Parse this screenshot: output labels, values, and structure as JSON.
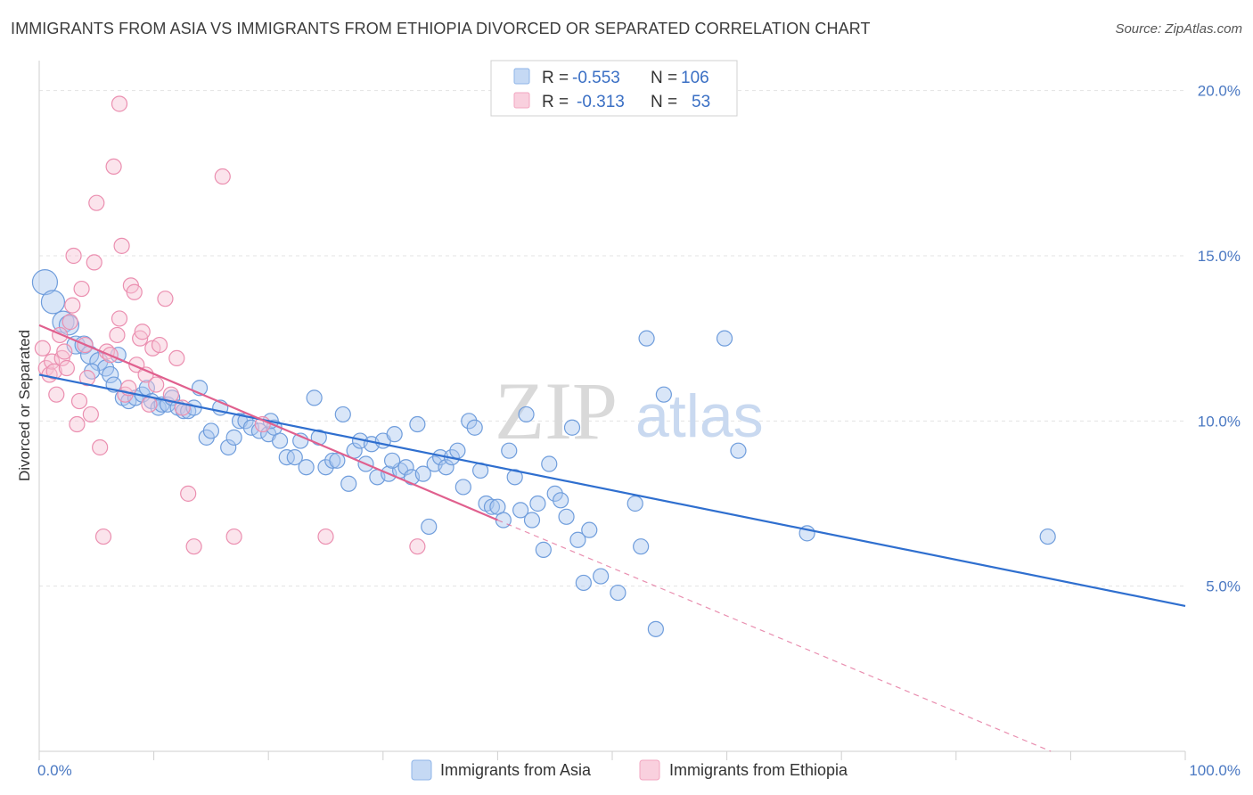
{
  "header": {
    "title": "IMMIGRANTS FROM ASIA VS IMMIGRANTS FROM ETHIOPIA DIVORCED OR SEPARATED CORRELATION CHART",
    "source": "Source: ZipAtlas.com"
  },
  "watermark": {
    "part1": "ZIP",
    "part2": "atlas"
  },
  "legend": {
    "r_label": "R =",
    "n_label": "N =",
    "rows": [
      {
        "r": "-0.553",
        "n": "106",
        "color": "#8fb5e8"
      },
      {
        "r": "-0.313",
        "n": "53",
        "color": "#f2a6c0"
      }
    ]
  },
  "chart_data": {
    "type": "scatter",
    "title": "IMMIGRANTS FROM ASIA VS IMMIGRANTS FROM ETHIOPIA DIVORCED OR SEPARATED CORRELATION CHART",
    "xlabel": "",
    "ylabel": "Divorced or Separated",
    "xlim": [
      0,
      100
    ],
    "ylim": [
      0,
      20.8
    ],
    "x_tick_labels": [
      "0.0%",
      "100.0%"
    ],
    "y_ticks": [
      5,
      10,
      15,
      20
    ],
    "y_tick_labels": [
      "5.0%",
      "10.0%",
      "15.0%",
      "20.0%"
    ],
    "grid": true,
    "legend_position": "top-center",
    "series": [
      {
        "name": "Immigrants from Asia",
        "color": "#8fb5e8",
        "line_color": "#2f6fcf",
        "trend": {
          "x": [
            0,
            100
          ],
          "y": [
            11.4,
            4.4
          ]
        },
        "points": [
          [
            0.5,
            14.2
          ],
          [
            1.2,
            13.6
          ],
          [
            2.1,
            13.0
          ],
          [
            2.6,
            12.9
          ],
          [
            3.2,
            12.3
          ],
          [
            3.9,
            12.3
          ],
          [
            4.4,
            12.0
          ],
          [
            5.2,
            11.8
          ],
          [
            5.8,
            11.6
          ],
          [
            6.2,
            11.4
          ],
          [
            6.5,
            11.1
          ],
          [
            7.3,
            10.7
          ],
          [
            7.8,
            10.6
          ],
          [
            8.4,
            10.7
          ],
          [
            9.0,
            10.8
          ],
          [
            9.4,
            11.0
          ],
          [
            9.8,
            10.6
          ],
          [
            10.4,
            10.4
          ],
          [
            10.7,
            10.5
          ],
          [
            11.2,
            10.5
          ],
          [
            11.6,
            10.7
          ],
          [
            12.1,
            10.4
          ],
          [
            12.6,
            10.3
          ],
          [
            13.0,
            10.3
          ],
          [
            13.5,
            10.4
          ],
          [
            14.0,
            11.0
          ],
          [
            14.6,
            9.5
          ],
          [
            15.0,
            9.7
          ],
          [
            15.8,
            10.4
          ],
          [
            16.5,
            9.2
          ],
          [
            17.0,
            9.5
          ],
          [
            17.5,
            10.0
          ],
          [
            18.0,
            10.0
          ],
          [
            18.5,
            9.8
          ],
          [
            19.2,
            9.7
          ],
          [
            20.0,
            9.6
          ],
          [
            20.5,
            9.8
          ],
          [
            21.0,
            9.4
          ],
          [
            21.6,
            8.9
          ],
          [
            22.3,
            8.9
          ],
          [
            22.8,
            9.4
          ],
          [
            23.3,
            8.6
          ],
          [
            24.0,
            10.7
          ],
          [
            24.4,
            9.5
          ],
          [
            25.0,
            8.6
          ],
          [
            25.6,
            8.8
          ],
          [
            26.0,
            8.8
          ],
          [
            26.5,
            10.2
          ],
          [
            27.0,
            8.1
          ],
          [
            27.5,
            9.1
          ],
          [
            28.0,
            9.4
          ],
          [
            28.5,
            8.7
          ],
          [
            29.0,
            9.3
          ],
          [
            29.5,
            8.3
          ],
          [
            30.0,
            9.4
          ],
          [
            30.5,
            8.4
          ],
          [
            31.0,
            9.6
          ],
          [
            31.5,
            8.5
          ],
          [
            32.0,
            8.6
          ],
          [
            32.5,
            8.3
          ],
          [
            33.0,
            9.9
          ],
          [
            33.5,
            8.4
          ],
          [
            34.0,
            6.8
          ],
          [
            34.5,
            8.7
          ],
          [
            35.0,
            8.9
          ],
          [
            35.5,
            8.6
          ],
          [
            36.0,
            8.9
          ],
          [
            36.5,
            9.1
          ],
          [
            37.0,
            8.0
          ],
          [
            37.5,
            10.0
          ],
          [
            38.0,
            9.8
          ],
          [
            38.5,
            8.5
          ],
          [
            39.0,
            7.5
          ],
          [
            39.5,
            7.4
          ],
          [
            40.0,
            7.4
          ],
          [
            40.5,
            7.0
          ],
          [
            41.0,
            9.1
          ],
          [
            41.5,
            8.3
          ],
          [
            42.0,
            7.3
          ],
          [
            42.5,
            10.2
          ],
          [
            43.0,
            7.0
          ],
          [
            43.5,
            7.5
          ],
          [
            44.0,
            6.1
          ],
          [
            44.5,
            8.7
          ],
          [
            45.0,
            7.8
          ],
          [
            45.5,
            7.6
          ],
          [
            46.0,
            7.1
          ],
          [
            46.5,
            9.8
          ],
          [
            47.0,
            6.4
          ],
          [
            47.5,
            5.1
          ],
          [
            48.0,
            6.7
          ],
          [
            49.0,
            5.3
          ],
          [
            50.5,
            4.8
          ],
          [
            52.0,
            7.5
          ],
          [
            52.5,
            6.2
          ],
          [
            53.0,
            12.5
          ],
          [
            53.8,
            3.7
          ],
          [
            54.5,
            10.8
          ],
          [
            59.8,
            12.5
          ],
          [
            61.0,
            9.1
          ],
          [
            67.0,
            6.6
          ],
          [
            88.0,
            6.5
          ],
          [
            4.6,
            11.5
          ],
          [
            6.9,
            12.0
          ],
          [
            20.2,
            10.0
          ],
          [
            30.8,
            8.8
          ]
        ],
        "sizes": [
          14,
          13,
          12,
          11,
          10,
          10,
          10,
          10,
          9,
          9
        ]
      },
      {
        "name": "Immigrants from Ethiopia",
        "color": "#f2a6c0",
        "line_color": "#e0608e",
        "trend": {
          "x": [
            0,
            40
          ],
          "y": [
            12.9,
            7.0
          ]
        },
        "trend_extension": {
          "x": [
            40,
            100
          ],
          "y": [
            7.0,
            -1.7
          ]
        },
        "points": [
          [
            0.3,
            12.2
          ],
          [
            0.6,
            11.6
          ],
          [
            0.9,
            11.4
          ],
          [
            1.1,
            11.8
          ],
          [
            1.3,
            11.5
          ],
          [
            1.5,
            10.8
          ],
          [
            1.8,
            12.6
          ],
          [
            2.0,
            11.9
          ],
          [
            2.2,
            12.1
          ],
          [
            2.4,
            11.6
          ],
          [
            2.7,
            13.0
          ],
          [
            2.9,
            13.5
          ],
          [
            3.0,
            15.0
          ],
          [
            3.3,
            9.9
          ],
          [
            3.5,
            10.6
          ],
          [
            3.7,
            14.0
          ],
          [
            4.0,
            12.3
          ],
          [
            4.2,
            11.3
          ],
          [
            4.5,
            10.2
          ],
          [
            4.8,
            14.8
          ],
          [
            5.0,
            16.6
          ],
          [
            5.3,
            9.2
          ],
          [
            5.6,
            6.5
          ],
          [
            5.9,
            12.1
          ],
          [
            6.2,
            12.0
          ],
          [
            6.5,
            17.7
          ],
          [
            6.8,
            12.6
          ],
          [
            7.0,
            13.1
          ],
          [
            7.2,
            15.3
          ],
          [
            7.5,
            10.8
          ],
          [
            7.8,
            11.0
          ],
          [
            8.0,
            14.1
          ],
          [
            8.3,
            13.9
          ],
          [
            8.5,
            11.7
          ],
          [
            8.8,
            12.5
          ],
          [
            9.0,
            12.7
          ],
          [
            9.3,
            11.4
          ],
          [
            9.6,
            10.5
          ],
          [
            9.9,
            12.2
          ],
          [
            10.2,
            11.1
          ],
          [
            10.5,
            12.3
          ],
          [
            11.0,
            13.7
          ],
          [
            11.5,
            10.8
          ],
          [
            12.0,
            11.9
          ],
          [
            12.5,
            10.4
          ],
          [
            13.0,
            7.8
          ],
          [
            13.5,
            6.2
          ],
          [
            16.0,
            17.4
          ],
          [
            17.0,
            6.5
          ],
          [
            19.5,
            9.9
          ],
          [
            25.0,
            6.5
          ],
          [
            33.0,
            6.2
          ],
          [
            7.0,
            19.6
          ]
        ]
      }
    ]
  },
  "bottom_legend": {
    "items": [
      {
        "label": "Immigrants from Asia",
        "color": "#8fb5e8"
      },
      {
        "label": "Immigrants from Ethiopia",
        "color": "#f2a6c0"
      }
    ]
  }
}
